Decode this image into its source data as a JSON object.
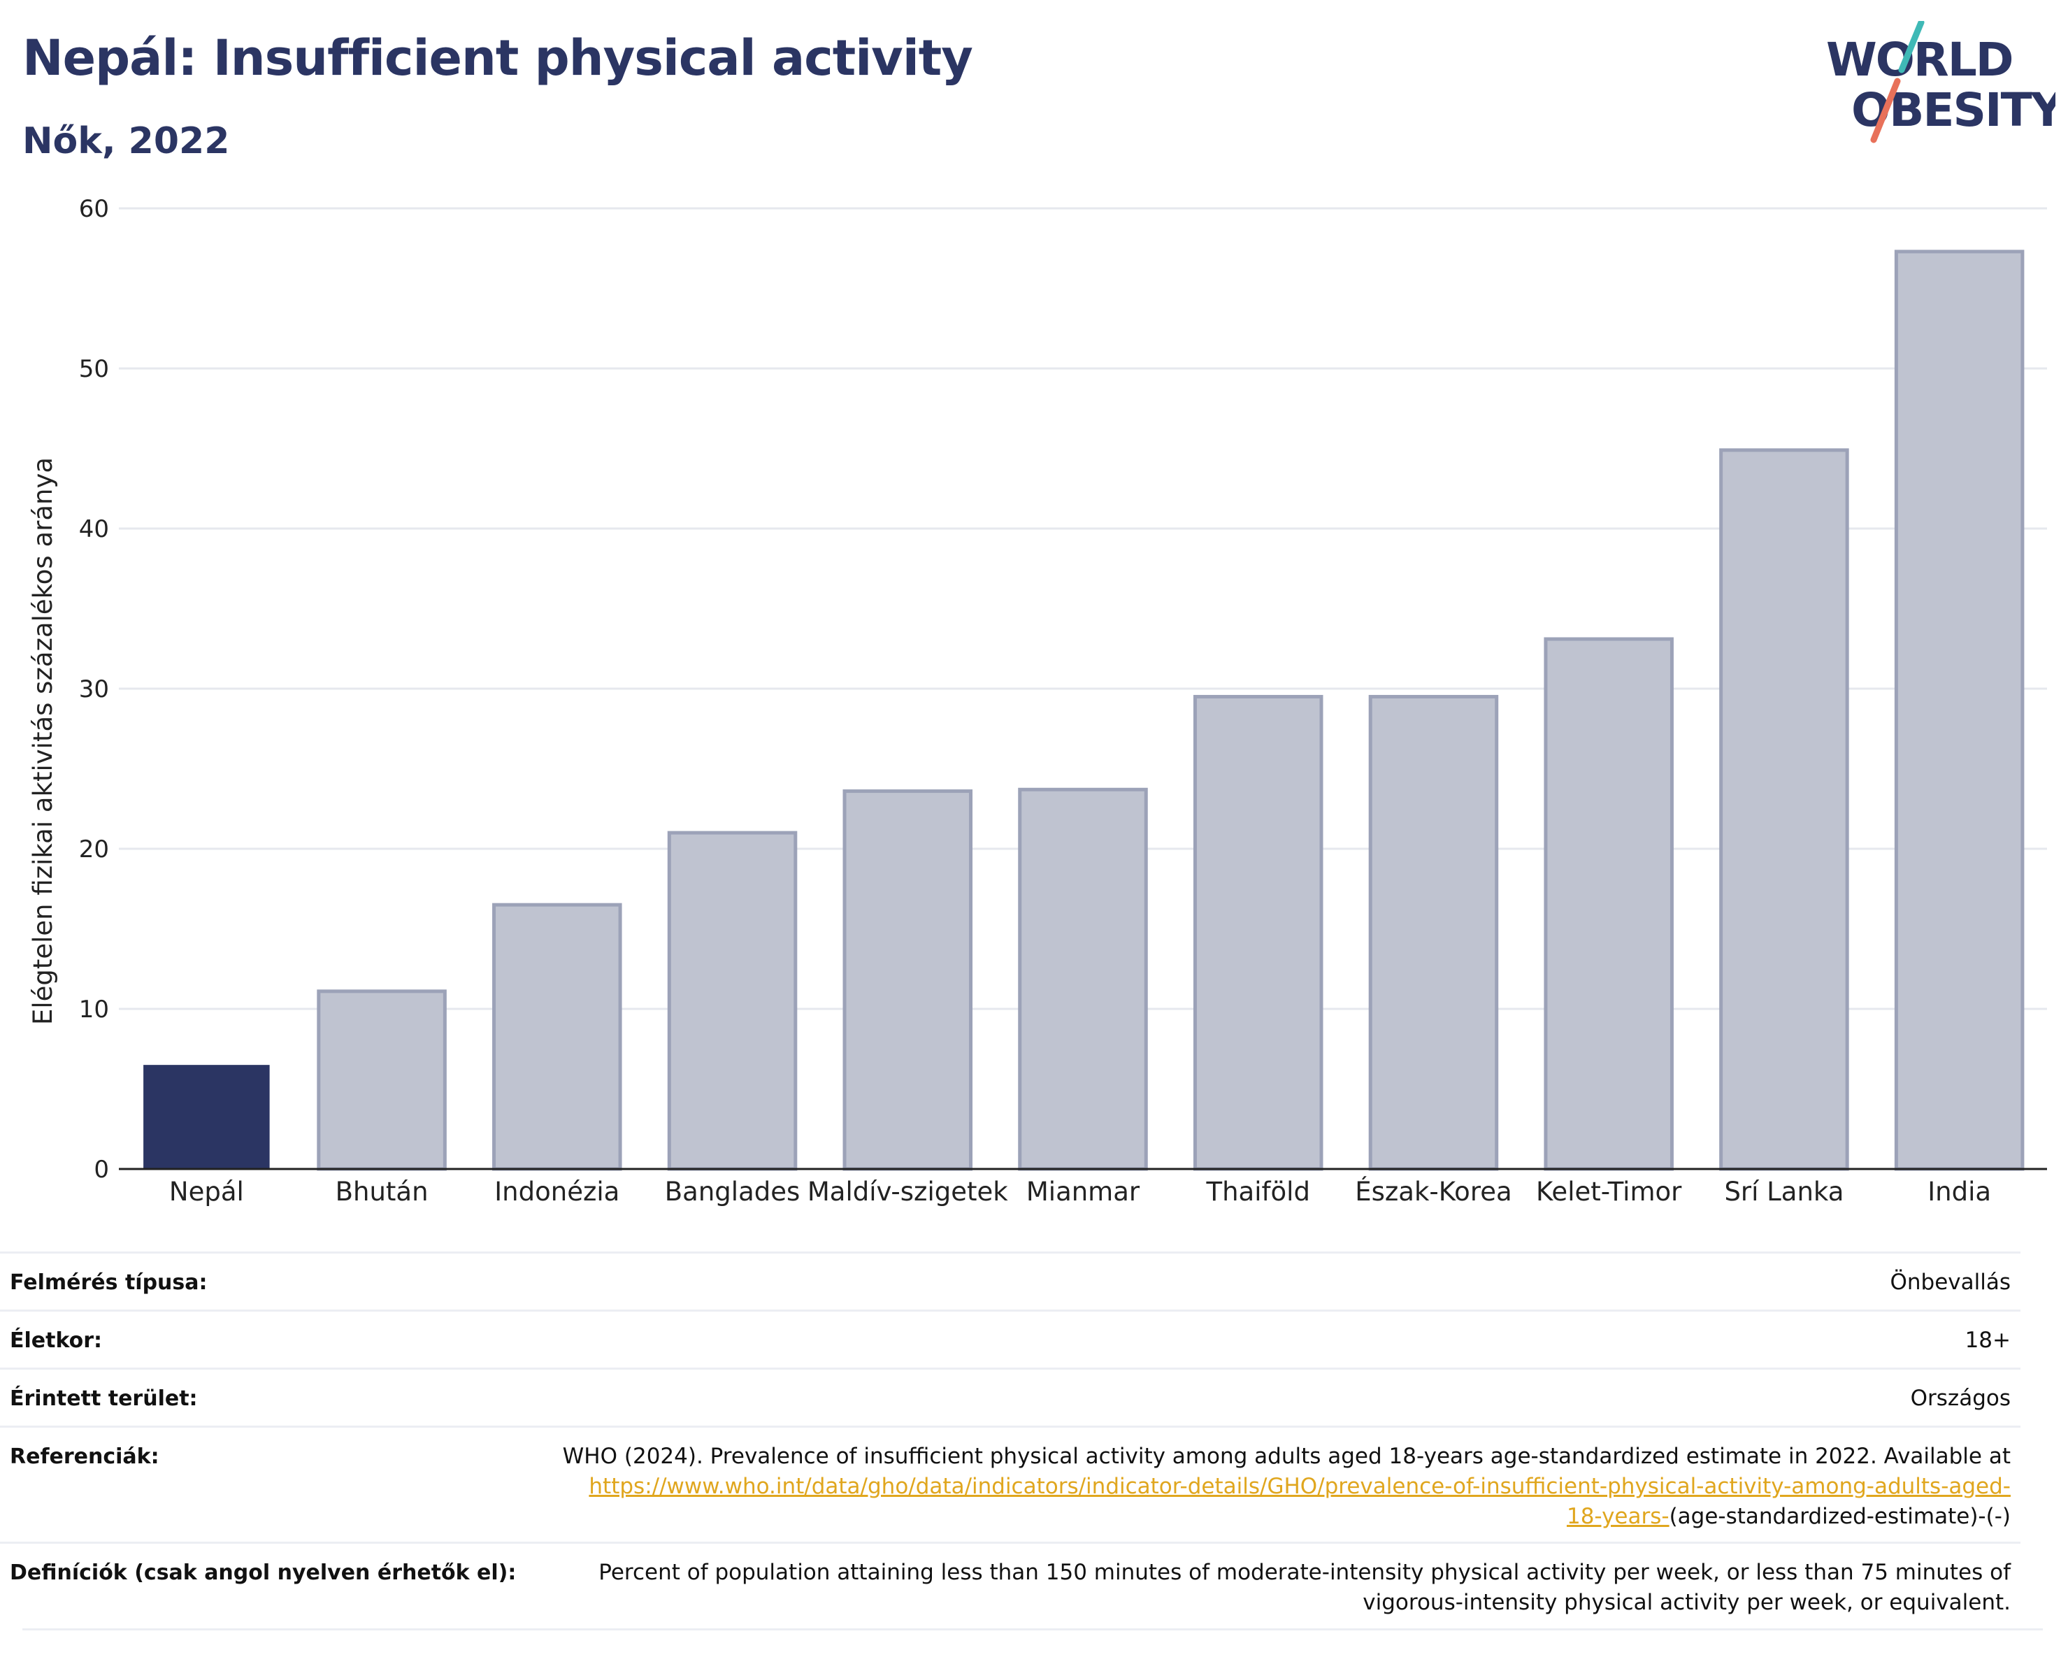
{
  "header": {
    "title": "Nepál: Insufficient physical activity",
    "subtitle": "Nők, 2022"
  },
  "logo": {
    "line1": "WORLD",
    "line2": "OBESITY",
    "colors": {
      "text": "#2b3563",
      "slash_top": "#3fb9b6",
      "slash_bottom": "#e8715a"
    }
  },
  "colors": {
    "highlight": "#2b3563",
    "bar_fill": "#bfc3d0",
    "bar_stroke": "#9ca2b8",
    "grid": "#e6e8ee",
    "link": "#e0a61e"
  },
  "chart_data": {
    "type": "bar",
    "title": "Nepál: Insufficient physical activity",
    "subtitle": "Nők, 2022",
    "xlabel": "",
    "ylabel": "Elégtelen fizikai aktivitás százalékos aránya",
    "ylim": [
      0,
      60
    ],
    "yticks": [
      0,
      10,
      20,
      30,
      40,
      50,
      60
    ],
    "grid": true,
    "highlight_category": "Nepál",
    "categories": [
      "Nepál",
      "Bhután",
      "Indonézia",
      "Banglades",
      "Maldív-szigetek",
      "Mianmar",
      "Thaiföld",
      "Észak-Korea",
      "Kelet-Timor",
      "Srí Lanka",
      "India"
    ],
    "values": [
      6.5,
      11.1,
      16.5,
      21.0,
      23.6,
      23.7,
      29.5,
      29.5,
      33.1,
      44.9,
      57.3
    ]
  },
  "meta": {
    "rows": [
      {
        "key": "Felmérés típusa:",
        "value": "Önbevallás"
      },
      {
        "key": "Életkor:",
        "value": "18+"
      },
      {
        "key": "Érintett terület:",
        "value": "Országos"
      }
    ],
    "references": {
      "key": "Referenciák:",
      "text_line1": "WHO (2024). Prevalence of insufficient physical activity among adults aged 18-years age-standardized estimate in 2022. Available at",
      "link_line2": "https://www.who.int/data/gho/data/indicators/indicator-details/GHO/prevalence-of-insufficient-physical-activity-among-adults-aged-",
      "link_line3": "18-years-",
      "text_line3": "(age-standardized-estimate)-(-)"
    },
    "definitions": {
      "key": "Definíciók (csak angol nyelven érhetők el):",
      "line1": "Percent of population attaining less than 150 minutes of moderate-intensity physical activity per week, or less than 75 minutes of",
      "line2": "vigorous-intensity physical activity per week, or equivalent."
    }
  }
}
